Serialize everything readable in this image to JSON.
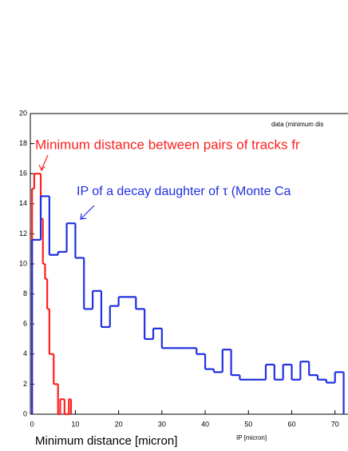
{
  "chart_data": {
    "type": "histogram",
    "title": "data (minimum dis",
    "x_label": "IP [micron]",
    "annotations": [
      "Minimum distance [micron]"
    ],
    "series": [
      {
        "name": "Minimum distance between pairs of tracks fr",
        "color": "#ff2020",
        "bins": [
          0,
          0.5,
          1,
          1.5,
          2,
          2.5,
          3,
          3.5,
          4,
          4.5,
          5,
          5.5,
          6,
          6.5,
          7,
          7.5,
          8,
          8.5,
          9
        ],
        "values": [
          15,
          16,
          16,
          16,
          13,
          10,
          9,
          7,
          4,
          4,
          2,
          2,
          0,
          1,
          1,
          0,
          0,
          1
        ]
      },
      {
        "name": "IP of  a decay daughter of τ (Monte Ca",
        "color": "#2030e0",
        "bins": [
          0,
          2,
          4,
          6,
          8,
          10,
          12,
          14,
          16,
          18,
          20,
          22,
          24,
          26,
          28,
          30,
          32,
          34,
          36,
          38,
          40,
          42,
          44,
          46,
          48,
          50,
          52,
          54,
          56,
          58,
          60,
          62,
          64,
          66,
          68,
          70,
          72
        ],
        "values": [
          11.6,
          14.5,
          10.6,
          10.8,
          12.7,
          10.4,
          7.0,
          8.2,
          5.8,
          7.2,
          7.8,
          7.8,
          7.0,
          5.0,
          5.7,
          4.4,
          4.4,
          4.4,
          4.4,
          4.0,
          3.0,
          2.8,
          4.3,
          2.6,
          2.3,
          2.3,
          2.3,
          3.3,
          2.3,
          3.3,
          2.3,
          3.5,
          2.6,
          2.3,
          2.1,
          2.8
        ]
      }
    ],
    "xlim": [
      -0.4,
      73
    ],
    "xticks": [
      0,
      10,
      20,
      30,
      40,
      50,
      60,
      70
    ],
    "ylim": [
      0,
      20
    ],
    "yticks": [
      0,
      2,
      4,
      6,
      8,
      10,
      12,
      14,
      16,
      18,
      20
    ]
  }
}
